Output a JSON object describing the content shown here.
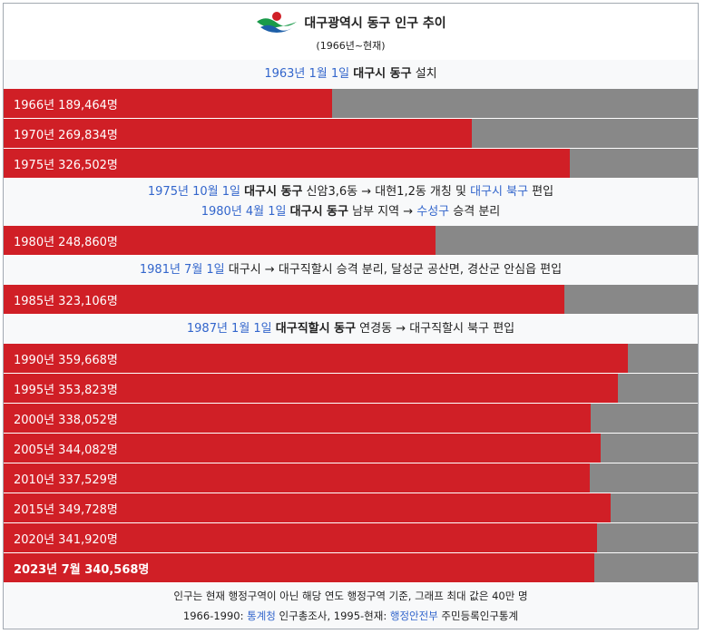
{
  "header": {
    "title": "대구광역시 동구 인구 추이",
    "subtitle": "(1966년~현재)",
    "logo_icon": "daegu-emblem-icon",
    "logo_colors": {
      "green": "#1a9a4a",
      "red": "#d01f26",
      "blue": "#1d5fa8"
    }
  },
  "colors": {
    "bar": "#d01f26",
    "track": "#888888",
    "link": "#3366cc"
  },
  "notes": {
    "n1": {
      "date": "1963년 1월 1일",
      "entity": "대구시 동구",
      "text": " 설치"
    },
    "n2a": {
      "date": "1975년 10월 1일",
      "entity": "대구시 동구",
      "text1": " 신암3,6동 → 대현1,2동 개칭 및 ",
      "link": "대구시 북구",
      "text2": " 편입"
    },
    "n2b": {
      "date": "1980년 4월 1일",
      "entity": "대구시 동구",
      "text1": " 남부 지역 → ",
      "link": "수성구",
      "text2": " 승격 분리"
    },
    "n3": {
      "date": "1981년 7월 1일",
      "text": " 대구시 → 대구직할시 승격 분리, 달성군 공산면, 경산군 안심읍 편입"
    },
    "n4": {
      "date": "1987년 1월 1일",
      "entity": "대구직할시 동구",
      "text": " 연경동 → 대구직할시 북구 편입"
    }
  },
  "footer": {
    "line1": "인구는 현재 행정구역이 아닌 해당 연도 행정구역 기준, 그래프 최대 값은 40만 명",
    "l2_a": "1966-1990: ",
    "l2_link1": "통계청",
    "l2_b": " 인구총조사, 1995-현재: ",
    "l2_link2": "행정안전부",
    "l2_c": " 주민등록인구통계"
  },
  "chart_data": {
    "type": "bar",
    "orientation": "horizontal",
    "title": "대구광역시 동구 인구 추이",
    "subtitle": "(1966년~현재)",
    "xlim": [
      0,
      400000
    ],
    "grid": false,
    "categories": [
      "1966년",
      "1970년",
      "1975년",
      "1980년",
      "1985년",
      "1990년",
      "1995년",
      "2000년",
      "2005년",
      "2010년",
      "2015년",
      "2020년",
      "2023년 7월"
    ],
    "values": [
      189464,
      269834,
      326502,
      248860,
      323106,
      359668,
      353823,
      338052,
      344082,
      337529,
      349728,
      341920,
      340568
    ],
    "labels": [
      "1966년 189,464명",
      "1970년 269,834명",
      "1975년 326,502명",
      "1980년 248,860명",
      "1985년 323,106명",
      "1990년 359,668명",
      "1995년 353,823명",
      "2000년 338,052명",
      "2005년 344,082명",
      "2010년 337,529명",
      "2015년 349,728명",
      "2020년 341,920명",
      "2023년 7월 340,568명"
    ]
  }
}
